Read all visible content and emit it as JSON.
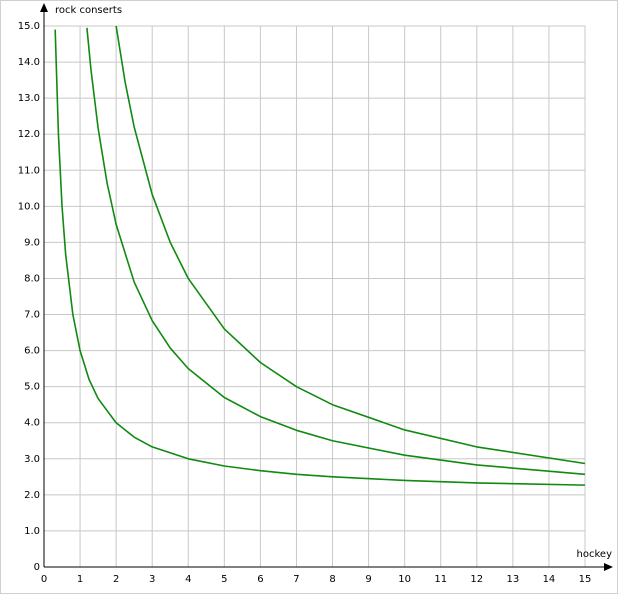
{
  "chart_data": {
    "type": "line",
    "x_label": "hockey",
    "y_label": "rock conserts",
    "xlim": [
      0,
      15
    ],
    "ylim": [
      0,
      15
    ],
    "xticks": [
      0,
      1,
      2,
      3,
      4,
      5,
      6,
      7,
      8,
      9,
      10,
      11,
      12,
      13,
      14,
      15
    ],
    "yticks": [
      0,
      {
        "value": 1,
        "label": "1.0"
      },
      {
        "value": 2,
        "label": "2.0"
      },
      {
        "value": 3,
        "label": "3.0"
      },
      {
        "value": 4,
        "label": "4.0"
      },
      {
        "value": 5,
        "label": "5.0"
      },
      {
        "value": 6,
        "label": "6.0"
      },
      {
        "value": 7,
        "label": "7.0"
      },
      {
        "value": 8,
        "label": "8.0"
      },
      {
        "value": 9,
        "label": "9.0"
      },
      {
        "value": 10,
        "label": "10.0"
      },
      {
        "value": 11,
        "label": "11.0"
      },
      {
        "value": 12,
        "label": "12.0"
      },
      {
        "value": 13,
        "label": "13.0"
      },
      {
        "value": 14,
        "label": "14.0"
      },
      {
        "value": 15,
        "label": "15.0"
      }
    ],
    "grid": true,
    "series": [
      {
        "color": "#108a10",
        "x": [
          0.31,
          0.4,
          0.5,
          0.6,
          0.8,
          1,
          1.25,
          1.5,
          2,
          2.5,
          3,
          4,
          5,
          6,
          7,
          8,
          10,
          12,
          15
        ],
        "values": [
          14.9,
          12,
          10,
          8.67,
          7,
          6,
          5.2,
          4.67,
          4,
          3.6,
          3.33,
          3,
          2.8,
          2.67,
          2.57,
          2.5,
          2.4,
          2.33,
          2.27
        ]
      },
      {
        "color": "#108a10",
        "x": [
          1.19,
          1.3,
          1.5,
          1.75,
          2,
          2.5,
          3,
          3.5,
          4,
          5,
          6,
          7,
          8,
          10,
          12,
          15
        ],
        "values": [
          14.95,
          13.81,
          12.17,
          10.64,
          9.5,
          7.9,
          6.83,
          6.07,
          5.5,
          4.7,
          4.17,
          3.79,
          3.5,
          3.1,
          2.83,
          2.57
        ]
      },
      {
        "color": "#108a10",
        "x": [
          2,
          2.25,
          2.5,
          3,
          3.5,
          4,
          5,
          6,
          7,
          8,
          10,
          12,
          15
        ],
        "values": [
          15,
          13.44,
          12.2,
          10.33,
          9,
          8,
          6.6,
          5.67,
          5,
          4.5,
          3.8,
          3.33,
          2.87
        ]
      }
    ]
  }
}
